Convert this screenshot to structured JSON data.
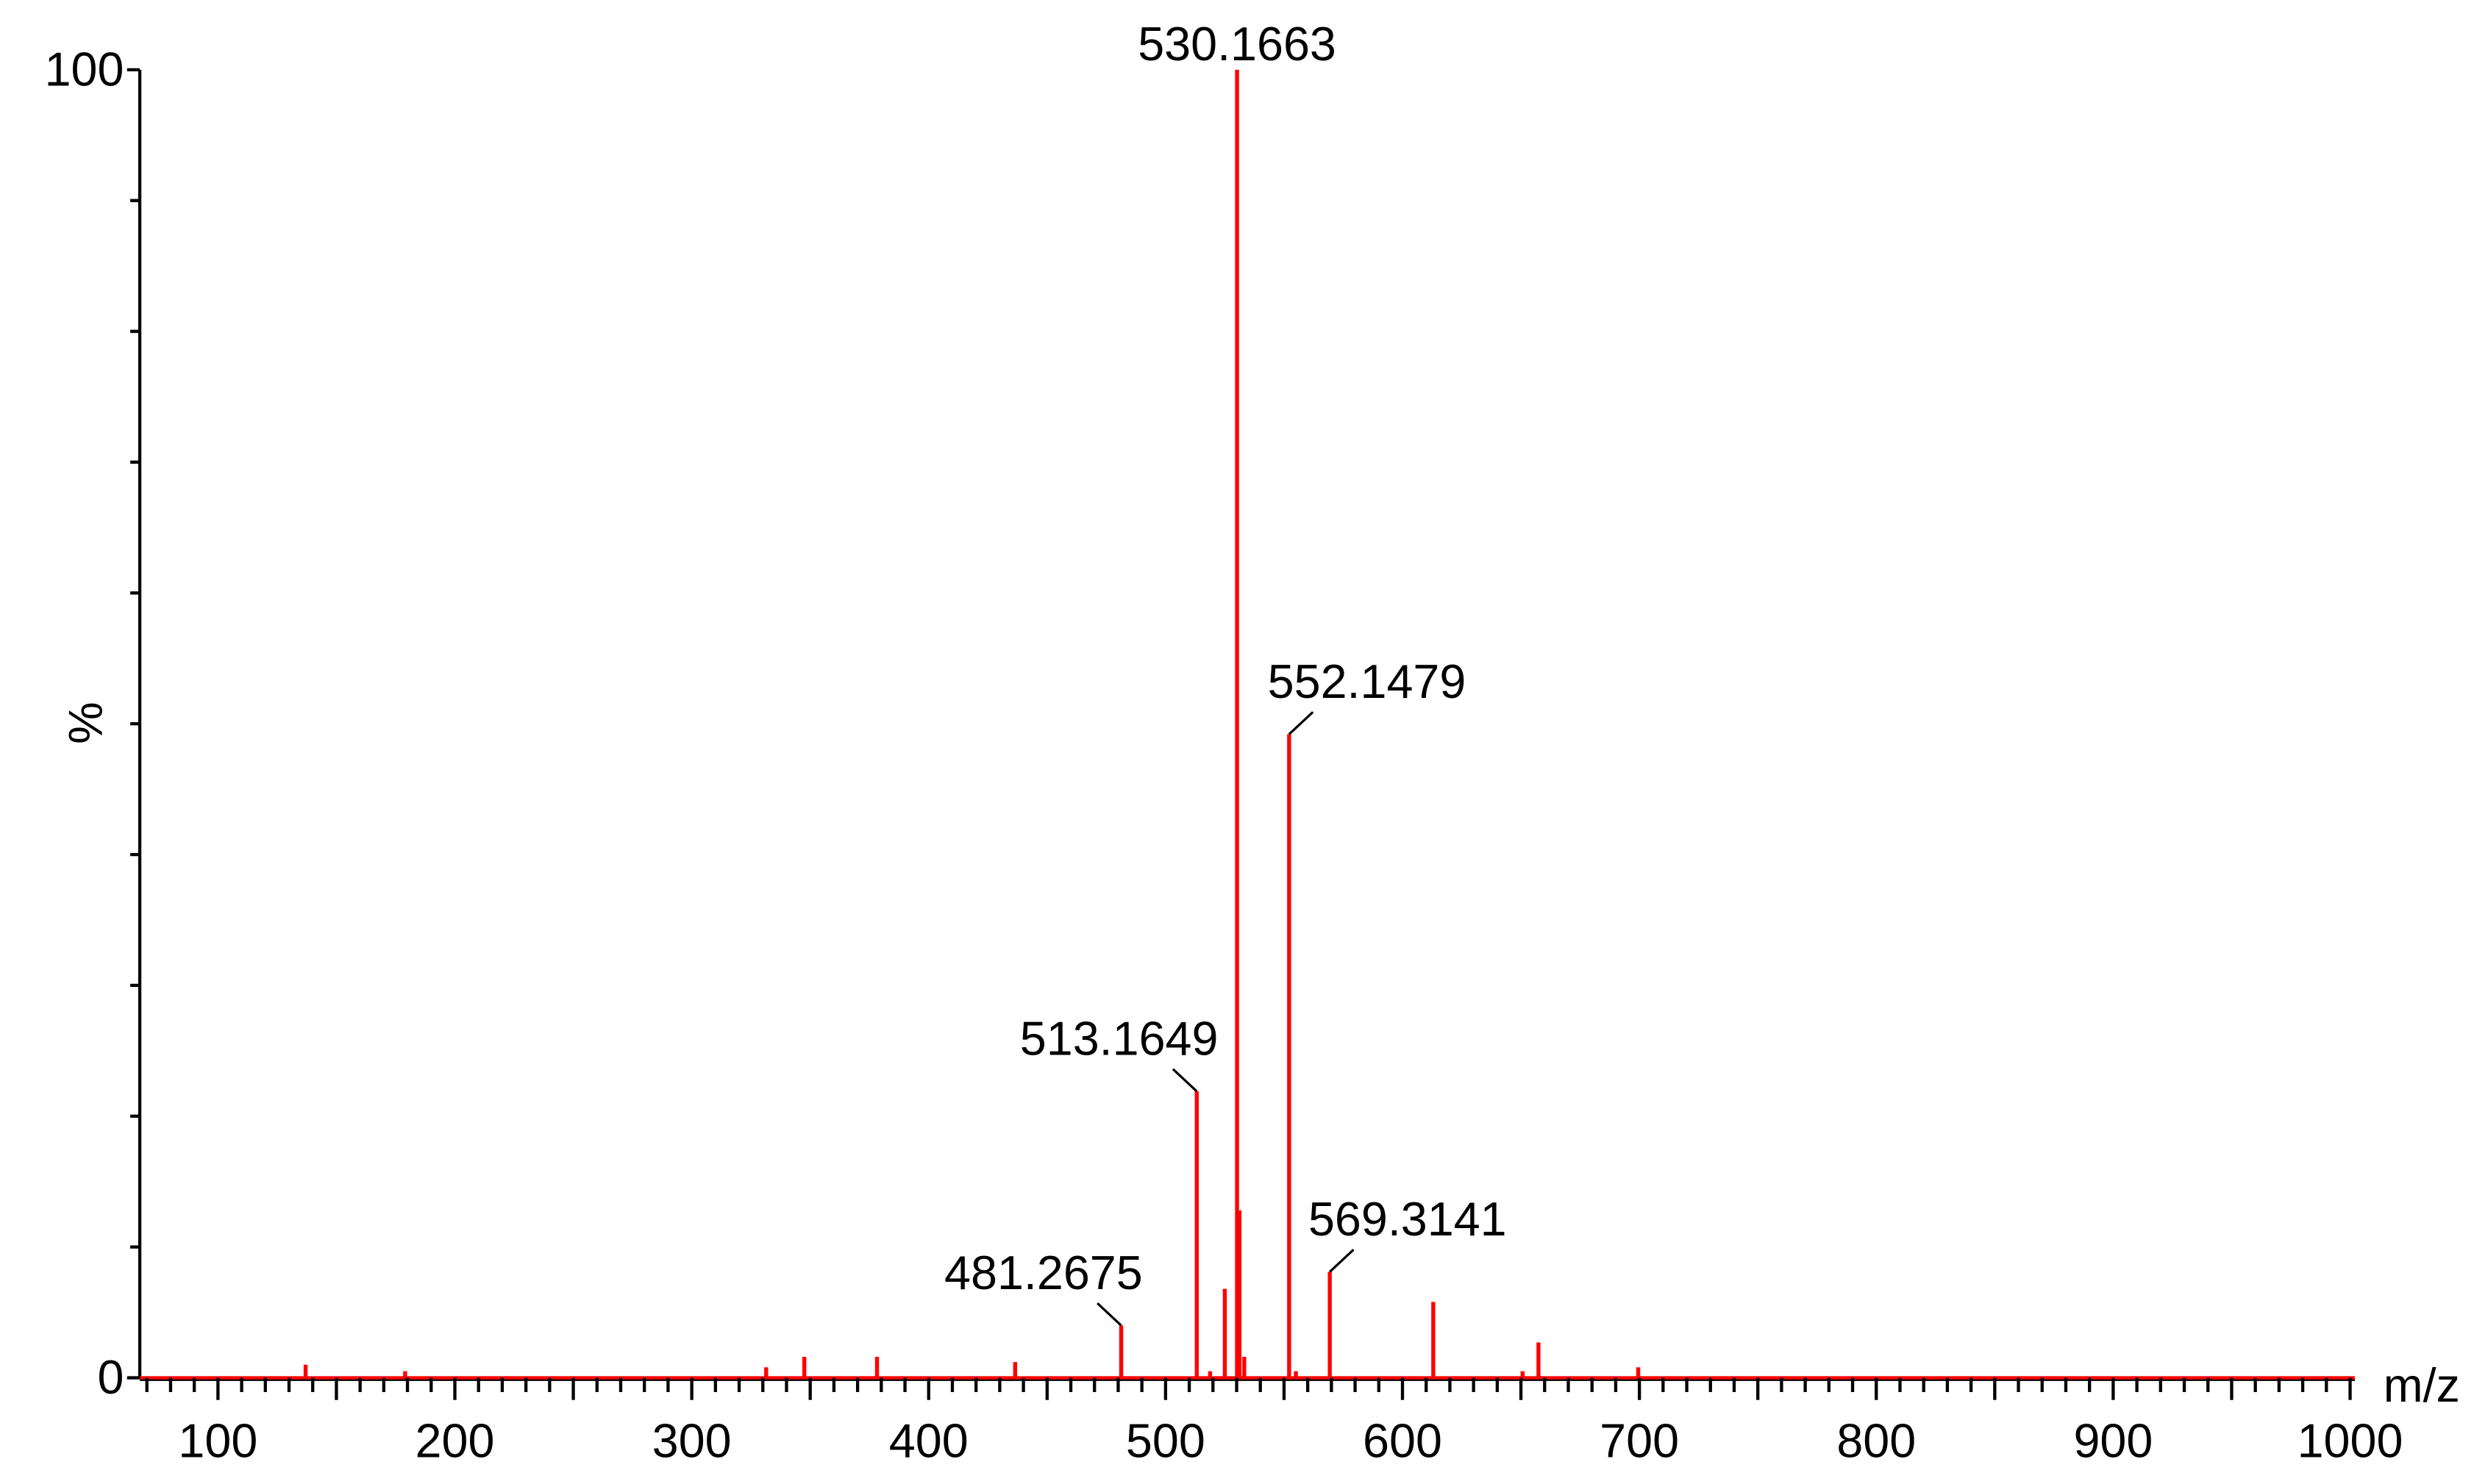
{
  "chart_data": {
    "type": "spectrum",
    "x_axis_label": "m/z",
    "y_axis_label": "%",
    "xlim": [
      67,
      1002
    ],
    "ylim": [
      0,
      100
    ],
    "xticks": [
      100,
      200,
      300,
      400,
      500,
      600,
      700,
      800,
      900,
      1000
    ],
    "xminorticks": [
      70,
      80,
      90,
      110,
      120,
      130,
      140,
      150,
      160,
      170,
      180,
      190,
      210,
      220,
      230,
      240,
      250,
      260,
      270,
      280,
      290,
      310,
      320,
      330,
      340,
      350,
      360,
      370,
      380,
      390,
      410,
      420,
      430,
      440,
      450,
      460,
      470,
      480,
      490,
      510,
      520,
      530,
      540,
      550,
      560,
      570,
      580,
      590,
      610,
      620,
      630,
      640,
      650,
      660,
      670,
      680,
      690,
      710,
      720,
      730,
      740,
      750,
      760,
      770,
      780,
      790,
      810,
      820,
      830,
      840,
      850,
      860,
      870,
      880,
      890,
      910,
      920,
      930,
      940,
      950,
      960,
      970,
      980,
      990
    ],
    "yticks": [
      0,
      100
    ],
    "yminorticks": [
      10,
      20,
      30,
      40,
      50,
      60,
      70,
      80,
      90
    ],
    "color": "#ff0000",
    "x": [
      137,
      179,
      331.4,
      347.5,
      378.2,
      436.5,
      481.2675,
      513.1649,
      518.8,
      525,
      530.1663,
      531.2,
      533.2,
      552.1479,
      555,
      569.3141,
      613,
      650.7,
      657.4,
      699.5
    ],
    "values": [
      1.0,
      0.5,
      0.8,
      1.6,
      1.6,
      1.2,
      4.0,
      21.9,
      0.5,
      6.8,
      100,
      12.8,
      1.6,
      49.2,
      0.5,
      8.1,
      5.8,
      0.5,
      2.7,
      0.8
    ],
    "x_labels": [
      null,
      null,
      null,
      null,
      null,
      null,
      "481.2675",
      "513.1649",
      null,
      null,
      "530.1663",
      null,
      null,
      "552.1479",
      null,
      "569.3141",
      null,
      null,
      null,
      null
    ]
  }
}
